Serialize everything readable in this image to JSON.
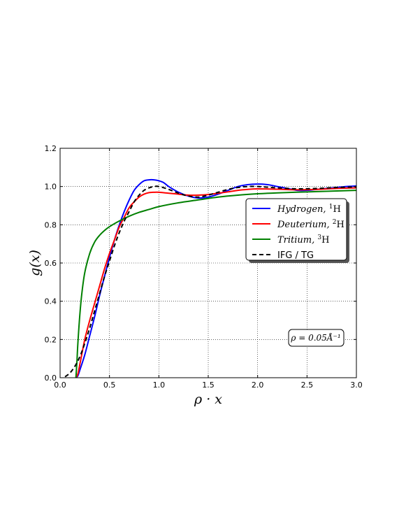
{
  "chart_data": {
    "type": "line",
    "title": "",
    "xlabel": "ρ · x",
    "ylabel": "g(x)",
    "xlim": [
      0.0,
      3.0
    ],
    "ylim": [
      0.0,
      1.2
    ],
    "xticks": [
      "0.0",
      "0.5",
      "1.0",
      "1.5",
      "2.0",
      "2.5",
      "3.0"
    ],
    "yticks": [
      "0.0",
      "0.2",
      "0.4",
      "0.6",
      "0.8",
      "1.0",
      "1.2"
    ],
    "grid": true,
    "legend_position": "center-right",
    "annotation": "ρ = 0.05Å⁻¹",
    "series": [
      {
        "name": "Hydrogen,",
        "superscript": "1",
        "element": "H",
        "color": "#0000ff",
        "dash": "solid",
        "x": [
          0.16,
          0.18,
          0.2,
          0.25,
          0.3,
          0.35,
          0.4,
          0.45,
          0.5,
          0.55,
          0.6,
          0.65,
          0.7,
          0.75,
          0.8,
          0.85,
          0.9,
          0.95,
          1.0,
          1.05,
          1.1,
          1.2,
          1.3,
          1.4,
          1.5,
          1.6,
          1.7,
          1.8,
          1.9,
          2.0,
          2.1,
          2.2,
          2.3,
          2.4,
          2.5,
          2.6,
          2.7,
          2.8,
          2.9,
          3.0
        ],
        "y": [
          0.0,
          0.01,
          0.04,
          0.12,
          0.22,
          0.32,
          0.43,
          0.53,
          0.63,
          0.72,
          0.8,
          0.87,
          0.93,
          0.98,
          1.01,
          1.03,
          1.035,
          1.035,
          1.03,
          1.02,
          1.0,
          0.97,
          0.95,
          0.94,
          0.945,
          0.96,
          0.98,
          1.0,
          1.01,
          1.013,
          1.01,
          1.0,
          0.99,
          0.98,
          0.98,
          0.985,
          0.99,
          0.995,
          1.0,
          1.003
        ]
      },
      {
        "name": "Deuterium,",
        "superscript": "2",
        "element": "H",
        "color": "#ff0000",
        "dash": "solid",
        "x": [
          0.16,
          0.18,
          0.2,
          0.25,
          0.3,
          0.35,
          0.4,
          0.45,
          0.5,
          0.55,
          0.6,
          0.65,
          0.7,
          0.75,
          0.8,
          0.85,
          0.9,
          0.95,
          1.0,
          1.1,
          1.2,
          1.3,
          1.4,
          1.5,
          1.6,
          1.7,
          1.8,
          1.9,
          2.0,
          2.2,
          2.4,
          2.6,
          2.8,
          3.0
        ],
        "y": [
          0.0,
          0.02,
          0.07,
          0.2,
          0.3,
          0.39,
          0.48,
          0.57,
          0.65,
          0.72,
          0.79,
          0.84,
          0.89,
          0.92,
          0.945,
          0.96,
          0.968,
          0.97,
          0.97,
          0.965,
          0.96,
          0.955,
          0.955,
          0.958,
          0.965,
          0.972,
          0.98,
          0.985,
          0.988,
          0.986,
          0.983,
          0.985,
          0.99,
          0.993
        ]
      },
      {
        "name": "Tritium,",
        "superscript": "3",
        "element": "H",
        "color": "#008000",
        "dash": "solid",
        "x": [
          0.16,
          0.17,
          0.18,
          0.2,
          0.22,
          0.25,
          0.3,
          0.35,
          0.4,
          0.45,
          0.5,
          0.6,
          0.7,
          0.8,
          0.9,
          1.0,
          1.2,
          1.4,
          1.6,
          1.8,
          2.0,
          2.2,
          2.5,
          2.8,
          3.0
        ],
        "y": [
          0.0,
          0.08,
          0.18,
          0.33,
          0.44,
          0.55,
          0.65,
          0.71,
          0.745,
          0.77,
          0.79,
          0.82,
          0.845,
          0.865,
          0.88,
          0.895,
          0.915,
          0.93,
          0.945,
          0.955,
          0.962,
          0.967,
          0.972,
          0.977,
          0.98
        ]
      },
      {
        "name": "IFG / TG",
        "superscript": "",
        "element": "",
        "color": "#000000",
        "dash": "dashed",
        "x": [
          0.05,
          0.1,
          0.15,
          0.2,
          0.25,
          0.3,
          0.35,
          0.4,
          0.45,
          0.5,
          0.55,
          0.6,
          0.65,
          0.7,
          0.75,
          0.8,
          0.85,
          0.9,
          0.95,
          1.0,
          1.1,
          1.2,
          1.3,
          1.4,
          1.5,
          1.6,
          1.7,
          1.8,
          1.9,
          2.0,
          2.2,
          2.4,
          2.6,
          2.8,
          3.0
        ],
        "y": [
          0.005,
          0.025,
          0.06,
          0.11,
          0.18,
          0.26,
          0.35,
          0.44,
          0.53,
          0.61,
          0.69,
          0.76,
          0.82,
          0.87,
          0.92,
          0.955,
          0.98,
          0.993,
          1.0,
          1.0,
          0.985,
          0.965,
          0.95,
          0.945,
          0.955,
          0.97,
          0.985,
          0.995,
          1.0,
          1.0,
          0.993,
          0.988,
          0.99,
          0.995,
          0.998
        ]
      }
    ]
  }
}
